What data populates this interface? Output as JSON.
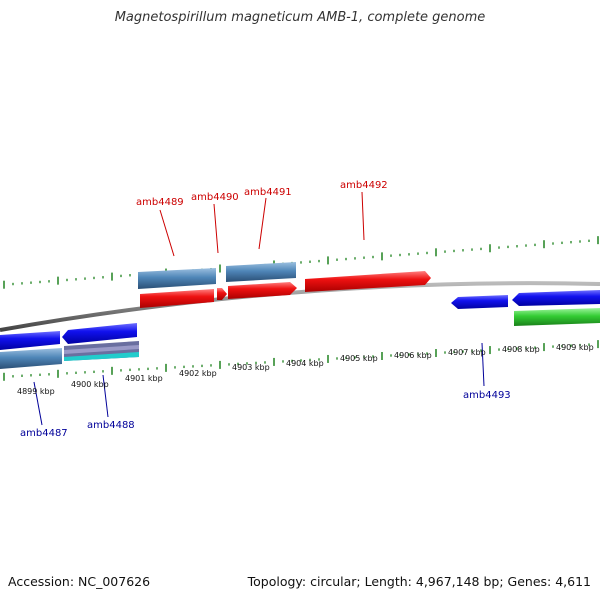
{
  "title": "Magnetospirillum magneticum AMB-1, complete genome",
  "footer": {
    "accession": "Accession: NC_007626",
    "topology": "Topology: circular; Length: 4,967,148 bp; Genes: 4,611"
  },
  "colors": {
    "backbone": "#808080",
    "tick": "#2e8b2e",
    "label_forward": "#cc0000",
    "label_reverse": "#000099",
    "gene_forward": "#ee1111",
    "gene_reverse": "#1111ee",
    "gene_steelblue": "#4f86b8",
    "gene_green": "#33cc33",
    "gene_cyan": "#22cccc"
  },
  "axis": {
    "unit": "kbp",
    "tick_labels": [
      "4899 kbp",
      "4900 kbp",
      "4901 kbp",
      "4902 kbp",
      "4903 kbp",
      "4904 kbp",
      "4905 kbp",
      "4906 kbp",
      "4907 kbp",
      "4908 kbp",
      "4909 kbp"
    ]
  },
  "gene_labels": [
    {
      "text": "amb4487",
      "strand": "reverse"
    },
    {
      "text": "amb4488",
      "strand": "reverse"
    },
    {
      "text": "amb4489",
      "strand": "forward"
    },
    {
      "text": "amb4490",
      "strand": "forward"
    },
    {
      "text": "amb4491",
      "strand": "forward"
    },
    {
      "text": "amb4492",
      "strand": "forward"
    },
    {
      "text": "amb4493",
      "strand": "reverse"
    }
  ]
}
